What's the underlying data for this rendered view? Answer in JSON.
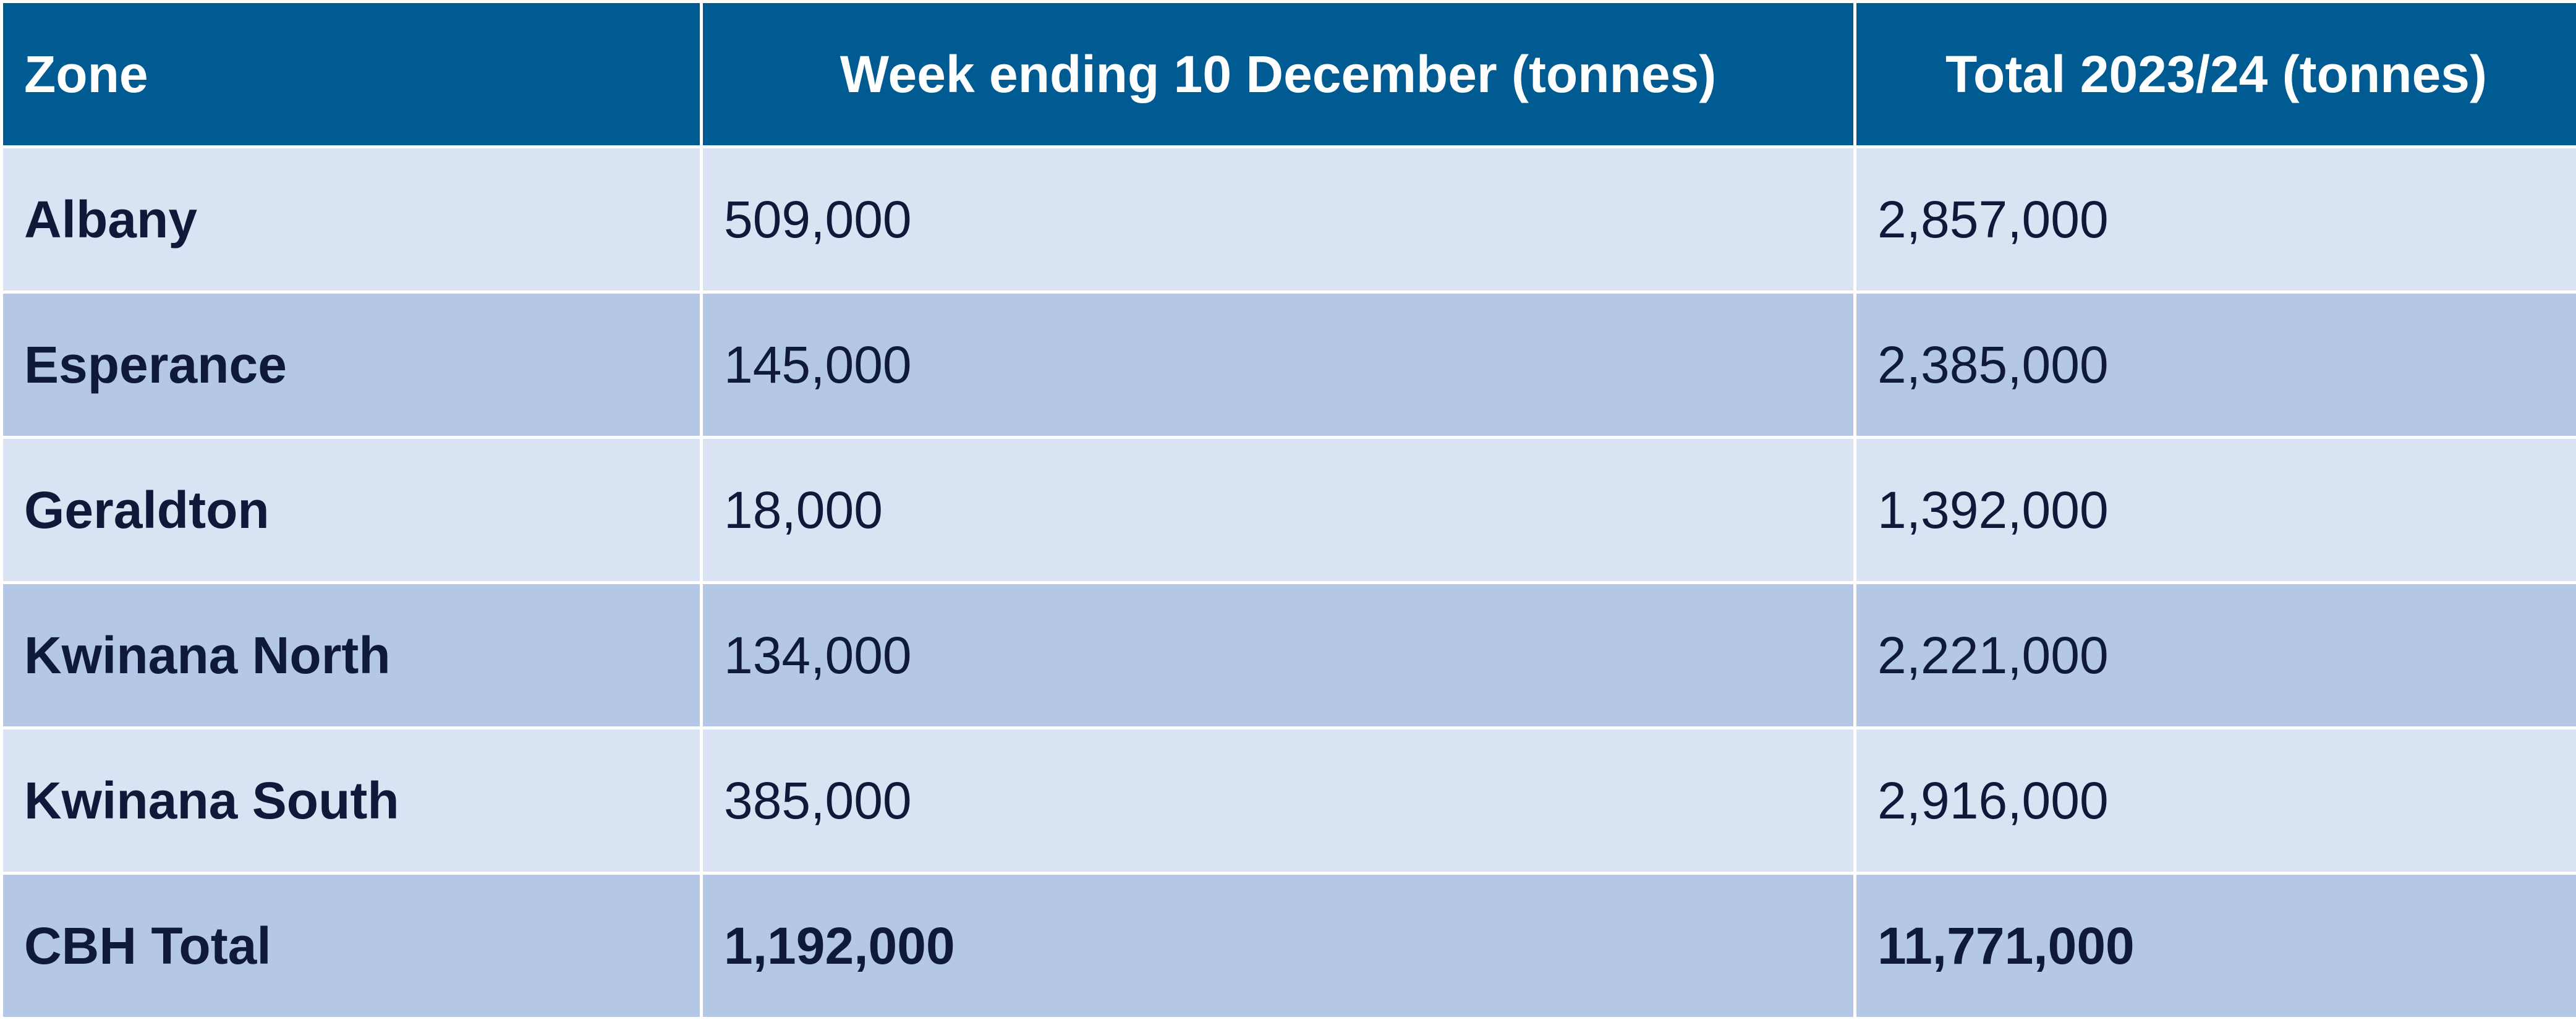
{
  "table": {
    "header": [
      "Zone",
      "Week ending 10 December (tonnes)",
      "Total 2023/24 (tonnes)"
    ],
    "rows": [
      [
        "Albany",
        "509,000",
        "2,857,000"
      ],
      [
        "Esperance",
        "145,000",
        "2,385,000"
      ],
      [
        "Geraldton",
        "18,000",
        "1,392,000"
      ],
      [
        "Kwinana North",
        "134,000",
        "2,221,000"
      ],
      [
        "Kwinana South",
        "385,000",
        "2,916,000"
      ],
      [
        "CBH Total",
        "1,192,000",
        "11,771,000"
      ]
    ]
  }
}
